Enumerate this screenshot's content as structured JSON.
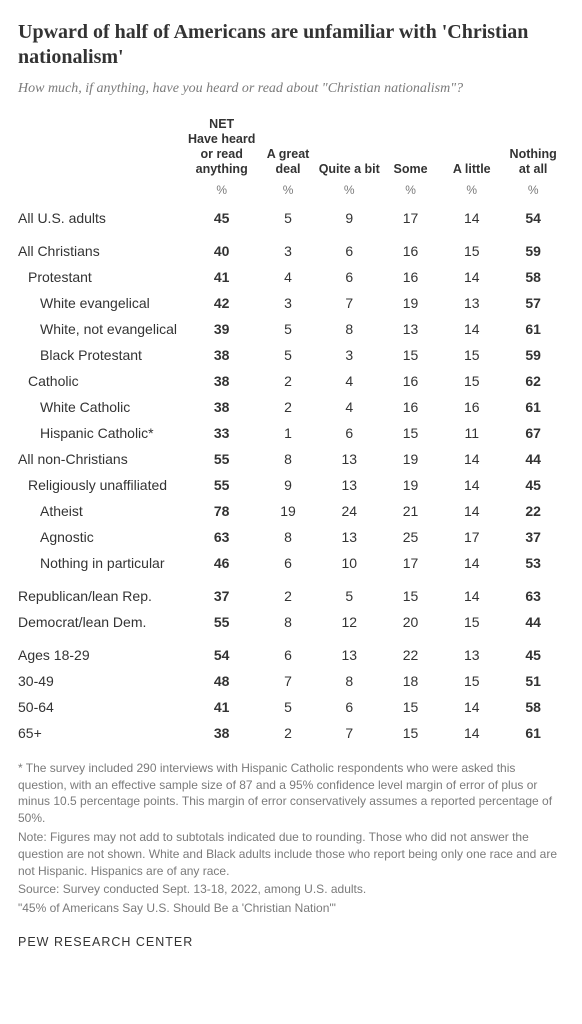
{
  "title": "Upward of half of Americans are unfamiliar with 'Christian nationalism'",
  "subtitle": "How much, if anything, have you heard or read about \"Christian nationalism\"?",
  "columns": {
    "net_top": "NET",
    "net": "Have heard or read anything",
    "c1": "A great deal",
    "c2": "Quite a bit",
    "c3": "Some",
    "c4": "A little",
    "c5": "Nothing at all"
  },
  "pct": "%",
  "rows": [
    {
      "label": "All U.S. adults",
      "indent": 0,
      "gap": false,
      "net": 45,
      "v": [
        5,
        9,
        17,
        14,
        54
      ]
    },
    {
      "label": "All Christians",
      "indent": 0,
      "gap": true,
      "net": 40,
      "v": [
        3,
        6,
        16,
        15,
        59
      ]
    },
    {
      "label": "Protestant",
      "indent": 1,
      "gap": false,
      "net": 41,
      "v": [
        4,
        6,
        16,
        14,
        58
      ]
    },
    {
      "label": "White evangelical",
      "indent": 2,
      "gap": false,
      "net": 42,
      "v": [
        3,
        7,
        19,
        13,
        57
      ]
    },
    {
      "label": "White, not evangelical",
      "indent": 2,
      "gap": false,
      "net": 39,
      "v": [
        5,
        8,
        13,
        14,
        61
      ]
    },
    {
      "label": "Black Protestant",
      "indent": 2,
      "gap": false,
      "net": 38,
      "v": [
        5,
        3,
        15,
        15,
        59
      ]
    },
    {
      "label": "Catholic",
      "indent": 1,
      "gap": false,
      "net": 38,
      "v": [
        2,
        4,
        16,
        15,
        62
      ]
    },
    {
      "label": "White Catholic",
      "indent": 2,
      "gap": false,
      "net": 38,
      "v": [
        2,
        4,
        16,
        16,
        61
      ]
    },
    {
      "label": "Hispanic Catholic*",
      "indent": 2,
      "gap": false,
      "net": 33,
      "v": [
        1,
        6,
        15,
        11,
        67
      ]
    },
    {
      "label": "All non-Christians",
      "indent": 0,
      "gap": false,
      "net": 55,
      "v": [
        8,
        13,
        19,
        14,
        44
      ]
    },
    {
      "label": "Religiously unaffiliated",
      "indent": 1,
      "gap": false,
      "net": 55,
      "v": [
        9,
        13,
        19,
        14,
        45
      ]
    },
    {
      "label": "Atheist",
      "indent": 2,
      "gap": false,
      "net": 78,
      "v": [
        19,
        24,
        21,
        14,
        22
      ]
    },
    {
      "label": "Agnostic",
      "indent": 2,
      "gap": false,
      "net": 63,
      "v": [
        8,
        13,
        25,
        17,
        37
      ]
    },
    {
      "label": "Nothing in particular",
      "indent": 2,
      "gap": false,
      "net": 46,
      "v": [
        6,
        10,
        17,
        14,
        53
      ]
    },
    {
      "label": "Republican/lean Rep.",
      "indent": 0,
      "gap": true,
      "net": 37,
      "v": [
        2,
        5,
        15,
        14,
        63
      ]
    },
    {
      "label": "Democrat/lean Dem.",
      "indent": 0,
      "gap": false,
      "net": 55,
      "v": [
        8,
        12,
        20,
        15,
        44
      ]
    },
    {
      "label": "Ages 18-29",
      "indent": 0,
      "gap": true,
      "net": 54,
      "v": [
        6,
        13,
        22,
        13,
        45
      ]
    },
    {
      "label": "30-49",
      "indent": 0,
      "gap": false,
      "net": 48,
      "v": [
        7,
        8,
        18,
        15,
        51
      ]
    },
    {
      "label": "50-64",
      "indent": 0,
      "gap": false,
      "net": 41,
      "v": [
        5,
        6,
        15,
        14,
        58
      ]
    },
    {
      "label": "65+",
      "indent": 0,
      "gap": false,
      "net": 38,
      "v": [
        2,
        7,
        15,
        14,
        61
      ]
    }
  ],
  "footnote": {
    "star": "* The survey included 290 interviews with Hispanic Catholic respondents who were asked this question, with an effective sample size of 87 and a 95% confidence level margin of error of plus or minus 10.5 percentage points. This margin of error conservatively assumes a reported percentage of 50%.",
    "note": "Note: Figures may not add to subtotals indicated due to rounding. Those who did not answer the question are not shown. White and Black adults include those who report being only one race and are not Hispanic. Hispanics are of any race.",
    "src": "Source: Survey conducted Sept. 13-18, 2022, among U.S. adults.",
    "ref": "\"45% of Americans Say U.S. Should Be a 'Christian Nation'\""
  },
  "source_org": "PEW RESEARCH CENTER"
}
